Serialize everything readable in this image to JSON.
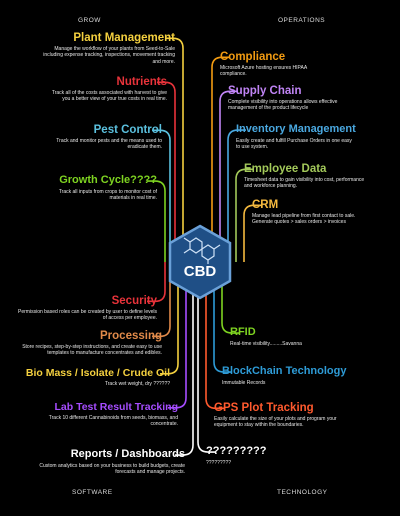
{
  "quadrants": {
    "top_left": "GROW",
    "top_right": "OPERATIONS",
    "bottom_left": "SOFTWARE",
    "bottom_right": "TECHNOLOGY"
  },
  "hub": {
    "label": "CBD",
    "color": "#1f4f86",
    "border": "#6aa0d8"
  },
  "left_items": [
    {
      "id": "plant-management",
      "title": "Plant Management",
      "color": "#f4d03f",
      "desc": "Manage the workflow of your plants from Seed-to-Sale including expense tracking, inspections, movement tracking and more."
    },
    {
      "id": "nutrients",
      "title": "Nutrients",
      "color": "#e8333a",
      "desc": "Track all of the costs associated with harvest to give you a better view of your true costs in real time."
    },
    {
      "id": "pest-control",
      "title": "Pest Control",
      "color": "#5bc0de",
      "desc": "Track and monitor pests and the means used to eradicate them."
    },
    {
      "id": "growth-cycle",
      "title": "Growth Cycle????",
      "color": "#7ed321",
      "desc": "Track all inputs from crops to monitor cost of materials in real time."
    },
    {
      "id": "security",
      "title": "Security",
      "color": "#e8333a",
      "desc": "Permission based roles can be created by user to define levels of access per employee."
    },
    {
      "id": "processing",
      "title": "Processing",
      "color": "#e08a4a",
      "desc": "Store recipes, step-by-step instructions, and create easy to use templates to manufacture concentrates and edibles."
    },
    {
      "id": "bio-mass",
      "title": "Bio Mass / Isolate / Crude Oil",
      "color": "#f4d03f",
      "desc": "Track wet weight, dry ??????"
    },
    {
      "id": "lab-test",
      "title": "Lab Test Result Tracking",
      "color": "#a64dff",
      "desc": "Track 10 different Cannabinoids from seeds, biomass, and concentrate."
    },
    {
      "id": "reports",
      "title": "Reports / Dashboards",
      "color": "#ffffff",
      "desc": "Custom analytics based on your business to build budgets, create forecasts and manage projects."
    }
  ],
  "right_items": [
    {
      "id": "compliance",
      "title": "Compliance",
      "color": "#f39c12",
      "desc": "Microsoft Azure hosting ensures HIPAA compliance."
    },
    {
      "id": "supply-chain",
      "title": "Supply Chain",
      "color": "#c084f5",
      "desc": "Complete visibility into operations allows effective management of the product lifecycle"
    },
    {
      "id": "inventory-management",
      "title": "Inventory Management",
      "color": "#4aa8e0",
      "desc": "Easily create and fulfill Purchase Orders in one easy to use system."
    },
    {
      "id": "employee-data",
      "title": "Employee Data",
      "color": "#a3c95a",
      "desc": "Timesheet data to gain visibility into cost, performance and workforce planning."
    },
    {
      "id": "crm",
      "title": "CRM",
      "color": "#f4b93f",
      "desc": "Manage lead pipeline from first contact to sale. Generate quotes > sales orders > invoices"
    },
    {
      "id": "rfid",
      "title": "RFID",
      "color": "#7ed321",
      "desc": "Real-time visibility.........Savanna"
    },
    {
      "id": "blockchain",
      "title": "BlockChain Technology",
      "color": "#2e9bd6",
      "desc": "Immutable Records"
    },
    {
      "id": "gps",
      "title": "GPS Plot Tracking",
      "color": "#ff5a2e",
      "desc": "Easily calculate the size of your plots and program your equipment to stay within the boundaries."
    },
    {
      "id": "unknown-tech",
      "title": "?????????",
      "color": "#ffffff",
      "desc": "?????????"
    }
  ]
}
